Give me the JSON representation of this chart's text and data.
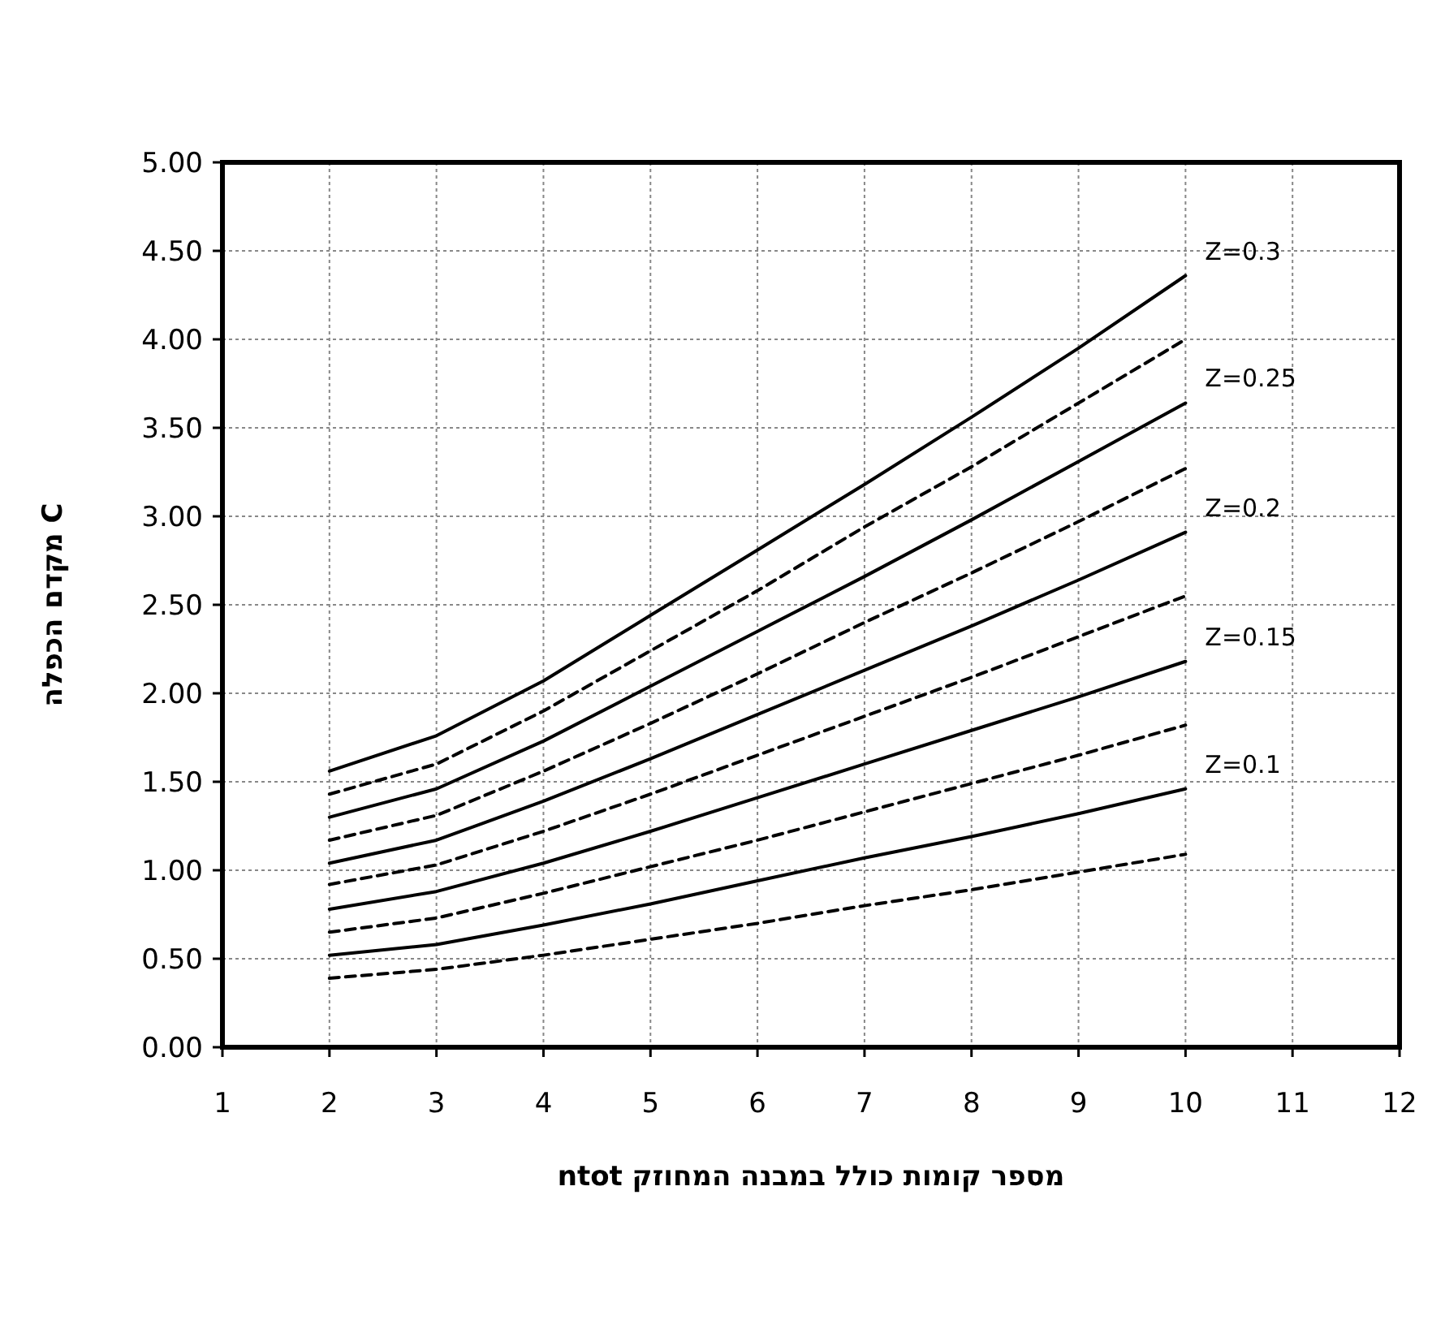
{
  "chart_data": {
    "type": "line",
    "xlabel": "מספר קומות כולל במבנה המחוזק ntot",
    "ylabel": "מקדם הכפלה C",
    "x": [
      2,
      3,
      4,
      5,
      6,
      7,
      8,
      9,
      10
    ],
    "xlim": [
      1,
      12
    ],
    "xticks": [
      1,
      2,
      3,
      4,
      5,
      6,
      7,
      8,
      9,
      10,
      11,
      12
    ],
    "ylim": [
      0,
      5
    ],
    "yticks": [
      {
        "value": 0,
        "label": "0.00"
      },
      {
        "value": 0.5,
        "label": "0.50"
      },
      {
        "value": 1,
        "label": "1.00"
      },
      {
        "value": 1.5,
        "label": "1.50"
      },
      {
        "value": 2,
        "label": "2.00"
      },
      {
        "value": 2.5,
        "label": "2.50"
      },
      {
        "value": 3,
        "label": "3.00"
      },
      {
        "value": 3.5,
        "label": "3.50"
      },
      {
        "value": 4,
        "label": "4.00"
      },
      {
        "value": 4.5,
        "label": "4.50"
      },
      {
        "value": 5,
        "label": "5.00"
      }
    ],
    "grid": true,
    "marker": "none",
    "series": [
      {
        "name": "Z=0.3",
        "color": "#000000",
        "line_style": "solid",
        "values": [
          1.56,
          1.76,
          2.07,
          2.44,
          2.81,
          3.18,
          3.56,
          3.95,
          4.36
        ]
      },
      {
        "color": "#000000",
        "line_style": "dashed",
        "values": [
          1.43,
          1.6,
          1.9,
          2.24,
          2.58,
          2.94,
          3.28,
          3.64,
          4.0
        ]
      },
      {
        "name": "Z=0.25",
        "color": "#000000",
        "line_style": "solid",
        "values": [
          1.3,
          1.46,
          1.73,
          2.04,
          2.35,
          2.66,
          2.98,
          3.31,
          3.64
        ]
      },
      {
        "color": "#000000",
        "line_style": "dashed",
        "values": [
          1.17,
          1.31,
          1.56,
          1.83,
          2.11,
          2.4,
          2.68,
          2.97,
          3.27
        ]
      },
      {
        "name": "Z=0.2",
        "color": "#000000",
        "line_style": "solid",
        "values": [
          1.04,
          1.17,
          1.39,
          1.63,
          1.88,
          2.13,
          2.38,
          2.64,
          2.91
        ]
      },
      {
        "color": "#000000",
        "line_style": "dashed",
        "values": [
          0.92,
          1.03,
          1.22,
          1.43,
          1.65,
          1.87,
          2.09,
          2.32,
          2.55
        ]
      },
      {
        "name": "Z=0.15",
        "color": "#000000",
        "line_style": "solid",
        "values": [
          0.78,
          0.88,
          1.04,
          1.22,
          1.41,
          1.6,
          1.79,
          1.98,
          2.18
        ]
      },
      {
        "color": "#000000",
        "line_style": "dashed",
        "values": [
          0.65,
          0.73,
          0.87,
          1.02,
          1.17,
          1.33,
          1.49,
          1.65,
          1.82
        ]
      },
      {
        "name": "Z=0.1",
        "color": "#000000",
        "line_style": "solid",
        "values": [
          0.52,
          0.58,
          0.69,
          0.81,
          0.94,
          1.07,
          1.19,
          1.32,
          1.46
        ]
      },
      {
        "color": "#000000",
        "line_style": "dashed",
        "values": [
          0.39,
          0.44,
          0.52,
          0.61,
          0.7,
          0.8,
          0.89,
          0.99,
          1.09
        ]
      }
    ]
  }
}
